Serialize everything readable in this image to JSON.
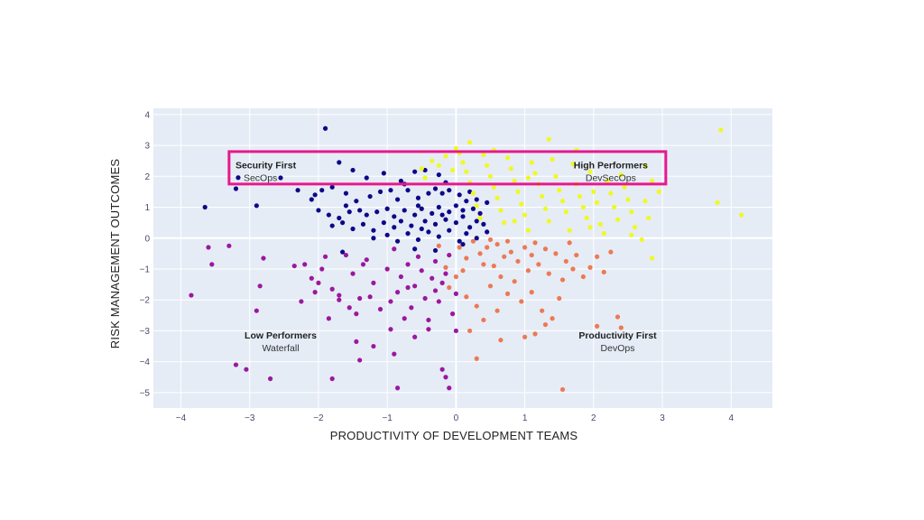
{
  "chart_data": {
    "type": "scatter",
    "title": "",
    "xlabel": "PRODUCTIVITY OF DEVELOPMENT TEAMS",
    "ylabel": "RISK MANAGEMENT OUTCOMES",
    "xlim": [
      -4.4,
      4.6
    ],
    "ylim": [
      -5.5,
      4.2
    ],
    "xticks": [
      -4,
      -3,
      -2,
      -1,
      0,
      1,
      2,
      3,
      4
    ],
    "yticks": [
      -5,
      -4,
      -3,
      -2,
      -1,
      0,
      1,
      2,
      3,
      4
    ],
    "xtick_labels": [
      "−4",
      "−3",
      "−2",
      "−1",
      "0",
      "1",
      "2",
      "3",
      "4"
    ],
    "ytick_labels": [
      "−5",
      "−4",
      "−3",
      "−2",
      "−1",
      "0",
      "1",
      "2",
      "3",
      "4"
    ],
    "grid": true,
    "plot_background": "#e5ecf6",
    "highlight_box": {
      "x": [
        -3.3,
        3.05
      ],
      "y": [
        1.75,
        2.8
      ],
      "color": "#e8188c"
    },
    "annotations": [
      {
        "title": "Security First",
        "subtitle": "SecOps",
        "x": -2.8,
        "y": 2.25,
        "marker": true
      },
      {
        "title": "High Performers",
        "subtitle": "DevSecOps",
        "x": 2.25,
        "y": 2.25,
        "marker": false
      },
      {
        "title": "Low Performers",
        "subtitle": "Waterfall",
        "x": -2.55,
        "y": -3.25,
        "marker": false
      },
      {
        "title": "Productivity First",
        "subtitle": "DevOps",
        "x": 2.35,
        "y": -3.25,
        "marker": false
      }
    ],
    "series": [
      {
        "color": "#0d0887",
        "points": [
          [
            -1.9,
            3.55
          ],
          [
            -1.7,
            2.45
          ],
          [
            -1.5,
            2.2
          ],
          [
            -1.3,
            1.95
          ],
          [
            -1.05,
            2.1
          ],
          [
            -0.8,
            1.85
          ],
          [
            -0.6,
            2.15
          ],
          [
            -0.45,
            2.2
          ],
          [
            -0.25,
            2.05
          ],
          [
            -2.55,
            1.95
          ],
          [
            -3.2,
            1.6
          ],
          [
            -3.65,
            1.0
          ],
          [
            -2.9,
            1.05
          ],
          [
            -2.3,
            1.55
          ],
          [
            -2.1,
            1.25
          ],
          [
            -1.95,
            1.55
          ],
          [
            -1.8,
            1.65
          ],
          [
            -1.6,
            1.45
          ],
          [
            -1.45,
            1.2
          ],
          [
            -1.25,
            1.35
          ],
          [
            -1.1,
            1.5
          ],
          [
            -0.95,
            1.55
          ],
          [
            -0.85,
            1.25
          ],
          [
            -0.7,
            1.55
          ],
          [
            -0.55,
            1.3
          ],
          [
            -0.4,
            1.45
          ],
          [
            -0.3,
            1.6
          ],
          [
            -0.2,
            1.45
          ],
          [
            -0.1,
            1.55
          ],
          [
            0.05,
            1.4
          ],
          [
            0.2,
            1.5
          ],
          [
            -2.0,
            0.9
          ],
          [
            -1.85,
            0.75
          ],
          [
            -1.7,
            0.65
          ],
          [
            -1.55,
            0.85
          ],
          [
            -1.4,
            0.9
          ],
          [
            -1.3,
            0.75
          ],
          [
            -1.15,
            0.85
          ],
          [
            -1.0,
            0.95
          ],
          [
            -0.9,
            0.7
          ],
          [
            -0.75,
            0.9
          ],
          [
            -0.6,
            0.75
          ],
          [
            -0.5,
            0.95
          ],
          [
            -0.35,
            0.8
          ],
          [
            -0.25,
            1.0
          ],
          [
            -0.1,
            0.85
          ],
          [
            0.0,
            1.05
          ],
          [
            0.1,
            0.9
          ],
          [
            0.25,
            0.95
          ],
          [
            0.35,
            0.8
          ],
          [
            0.45,
            1.15
          ],
          [
            -1.8,
            0.4
          ],
          [
            -1.65,
            0.5
          ],
          [
            -1.5,
            0.3
          ],
          [
            -1.35,
            0.45
          ],
          [
            -1.2,
            0.25
          ],
          [
            -1.05,
            0.5
          ],
          [
            -0.9,
            0.35
          ],
          [
            -0.8,
            0.55
          ],
          [
            -0.65,
            0.4
          ],
          [
            -0.5,
            0.3
          ],
          [
            -0.45,
            0.55
          ],
          [
            -0.3,
            0.45
          ],
          [
            -0.15,
            0.6
          ],
          [
            0.0,
            0.5
          ],
          [
            0.1,
            0.7
          ],
          [
            0.2,
            0.35
          ],
          [
            0.3,
            0.55
          ],
          [
            0.4,
            0.45
          ],
          [
            -1.2,
            0.0
          ],
          [
            -1.0,
            0.1
          ],
          [
            -0.85,
            -0.1
          ],
          [
            -0.7,
            0.15
          ],
          [
            -0.55,
            -0.05
          ],
          [
            -0.4,
            0.2
          ],
          [
            -0.25,
            0.05
          ],
          [
            -0.1,
            0.25
          ],
          [
            0.05,
            -0.1
          ],
          [
            0.15,
            0.15
          ],
          [
            0.3,
            0.0
          ],
          [
            0.45,
            0.2
          ],
          [
            -1.65,
            -0.45
          ],
          [
            -0.6,
            -0.35
          ],
          [
            -0.3,
            -0.4
          ],
          [
            0.1,
            -0.2
          ],
          [
            -0.75,
            1.75
          ],
          [
            -0.15,
            1.8
          ],
          [
            0.3,
            1.25
          ],
          [
            -2.05,
            1.4
          ],
          [
            -1.6,
            1.05
          ],
          [
            -0.55,
            1.05
          ],
          [
            -0.2,
            0.75
          ],
          [
            0.15,
            1.2
          ]
        ]
      },
      {
        "color": "#9c179e",
        "points": [
          [
            -3.85,
            -1.85
          ],
          [
            -3.55,
            -0.85
          ],
          [
            -3.6,
            -0.3
          ],
          [
            -3.3,
            -0.25
          ],
          [
            -2.8,
            -0.65
          ],
          [
            -2.85,
            -1.55
          ],
          [
            -2.9,
            -2.35
          ],
          [
            -3.2,
            -4.1
          ],
          [
            -3.05,
            -4.25
          ],
          [
            -2.7,
            -4.55
          ],
          [
            -2.35,
            -0.9
          ],
          [
            -2.25,
            -2.05
          ],
          [
            -2.2,
            -0.85
          ],
          [
            -2.1,
            -1.3
          ],
          [
            -2.0,
            -1.45
          ],
          [
            -1.95,
            -1.0
          ],
          [
            -1.9,
            -0.6
          ],
          [
            -1.85,
            -2.6
          ],
          [
            -1.8,
            -1.65
          ],
          [
            -1.7,
            -2.0
          ],
          [
            -1.7,
            -1.85
          ],
          [
            -1.6,
            -0.55
          ],
          [
            -1.55,
            -2.25
          ],
          [
            -1.5,
            -1.15
          ],
          [
            -1.45,
            -2.45
          ],
          [
            -1.4,
            -1.95
          ],
          [
            -1.35,
            -0.85
          ],
          [
            -1.3,
            -0.7
          ],
          [
            -1.2,
            -1.45
          ],
          [
            -1.1,
            -2.3
          ],
          [
            -1.0,
            -1.0
          ],
          [
            -0.95,
            -2.05
          ],
          [
            -0.9,
            -0.35
          ],
          [
            -0.85,
            -1.75
          ],
          [
            -0.8,
            -1.25
          ],
          [
            -0.75,
            -2.6
          ],
          [
            -0.7,
            -0.85
          ],
          [
            -0.65,
            -2.25
          ],
          [
            -0.6,
            -1.55
          ],
          [
            -0.55,
            -0.6
          ],
          [
            -0.5,
            -1.05
          ],
          [
            -0.45,
            -1.95
          ],
          [
            -0.4,
            -2.65
          ],
          [
            -0.35,
            -1.3
          ],
          [
            -0.3,
            -0.75
          ],
          [
            -0.25,
            -2.05
          ],
          [
            -0.2,
            -1.45
          ],
          [
            -0.15,
            -1.15
          ],
          [
            -0.1,
            -0.55
          ],
          [
            -0.05,
            -2.45
          ],
          [
            0.0,
            -1.8
          ],
          [
            -1.8,
            -4.55
          ],
          [
            -1.45,
            -3.35
          ],
          [
            -1.4,
            -3.95
          ],
          [
            -1.2,
            -3.5
          ],
          [
            -0.95,
            -2.95
          ],
          [
            -0.9,
            -3.75
          ],
          [
            -0.85,
            -4.85
          ],
          [
            -0.6,
            -3.2
          ],
          [
            -0.4,
            -2.95
          ],
          [
            -0.2,
            -4.25
          ],
          [
            -0.15,
            -4.5
          ],
          [
            -0.1,
            -4.85
          ],
          [
            0.0,
            -3.0
          ],
          [
            -2.05,
            -1.75
          ],
          [
            -1.25,
            -1.9
          ],
          [
            -0.7,
            -1.6
          ],
          [
            -0.3,
            -1.7
          ]
        ]
      },
      {
        "color": "#ed7953",
        "points": [
          [
            0.05,
            -0.3
          ],
          [
            0.15,
            -0.65
          ],
          [
            0.25,
            -0.1
          ],
          [
            0.35,
            -0.5
          ],
          [
            0.4,
            -0.85
          ],
          [
            0.45,
            -0.3
          ],
          [
            0.55,
            -0.9
          ],
          [
            0.6,
            -0.2
          ],
          [
            0.65,
            -1.25
          ],
          [
            0.7,
            -0.6
          ],
          [
            0.75,
            -0.1
          ],
          [
            0.8,
            -0.45
          ],
          [
            0.9,
            -0.75
          ],
          [
            1.0,
            -0.3
          ],
          [
            1.05,
            -1.05
          ],
          [
            1.1,
            -0.55
          ],
          [
            1.15,
            -0.15
          ],
          [
            1.2,
            -0.85
          ],
          [
            1.3,
            -0.35
          ],
          [
            1.35,
            -1.15
          ],
          [
            1.45,
            -0.5
          ],
          [
            1.55,
            -1.35
          ],
          [
            1.6,
            -0.75
          ],
          [
            1.7,
            -1.0
          ],
          [
            1.75,
            -0.55
          ],
          [
            1.85,
            -1.25
          ],
          [
            1.95,
            -0.95
          ],
          [
            2.05,
            -0.6
          ],
          [
            2.15,
            -1.1
          ],
          [
            2.25,
            -0.45
          ],
          [
            -0.1,
            -1.6
          ],
          [
            0.0,
            -1.25
          ],
          [
            0.15,
            -1.9
          ],
          [
            0.3,
            -2.2
          ],
          [
            0.5,
            -1.55
          ],
          [
            0.6,
            -2.35
          ],
          [
            0.75,
            -1.8
          ],
          [
            0.95,
            -2.05
          ],
          [
            1.1,
            -1.75
          ],
          [
            1.25,
            -2.35
          ],
          [
            1.4,
            -2.6
          ],
          [
            1.5,
            -1.95
          ],
          [
            0.2,
            -3.0
          ],
          [
            0.3,
            -3.9
          ],
          [
            0.4,
            -2.65
          ],
          [
            0.65,
            -3.3
          ],
          [
            1.0,
            -3.2
          ],
          [
            1.15,
            -3.1
          ],
          [
            1.3,
            -2.8
          ],
          [
            1.55,
            -4.9
          ],
          [
            2.05,
            -2.85
          ],
          [
            2.35,
            -2.55
          ],
          [
            2.4,
            -2.9
          ],
          [
            -0.25,
            -0.25
          ],
          [
            -0.15,
            -0.95
          ],
          [
            0.1,
            -1.05
          ],
          [
            0.5,
            -0.05
          ],
          [
            0.85,
            -1.4
          ],
          [
            1.65,
            -0.15
          ]
        ]
      },
      {
        "color": "#f0f921",
        "points": [
          [
            3.85,
            3.5
          ],
          [
            3.8,
            1.15
          ],
          [
            4.15,
            0.75
          ],
          [
            2.75,
            2.35
          ],
          [
            2.85,
            1.85
          ],
          [
            2.95,
            1.5
          ],
          [
            2.8,
            0.65
          ],
          [
            2.85,
            -0.65
          ],
          [
            2.7,
            -0.05
          ],
          [
            2.6,
            0.35
          ],
          [
            2.55,
            0.85
          ],
          [
            2.5,
            1.25
          ],
          [
            2.45,
            1.65
          ],
          [
            2.4,
            2.05
          ],
          [
            2.35,
            0.6
          ],
          [
            2.3,
            1.0
          ],
          [
            2.25,
            1.45
          ],
          [
            2.2,
            1.85
          ],
          [
            2.15,
            0.15
          ],
          [
            2.1,
            0.45
          ],
          [
            2.05,
            1.15
          ],
          [
            2.0,
            1.5
          ],
          [
            1.95,
            2.15
          ],
          [
            1.9,
            0.65
          ],
          [
            1.85,
            1.0
          ],
          [
            1.8,
            1.35
          ],
          [
            1.75,
            1.75
          ],
          [
            1.7,
            2.4
          ],
          [
            1.65,
            0.25
          ],
          [
            1.6,
            0.85
          ],
          [
            1.55,
            1.2
          ],
          [
            1.5,
            1.55
          ],
          [
            1.45,
            2.0
          ],
          [
            1.4,
            2.55
          ],
          [
            1.35,
            0.55
          ],
          [
            1.3,
            0.95
          ],
          [
            1.25,
            1.35
          ],
          [
            1.2,
            1.75
          ],
          [
            1.15,
            2.1
          ],
          [
            1.1,
            2.45
          ],
          [
            1.05,
            0.25
          ],
          [
            1.0,
            0.75
          ],
          [
            0.95,
            1.1
          ],
          [
            0.9,
            1.5
          ],
          [
            0.85,
            1.85
          ],
          [
            0.8,
            2.25
          ],
          [
            0.75,
            2.6
          ],
          [
            0.7,
            0.5
          ],
          [
            0.65,
            0.9
          ],
          [
            0.6,
            1.3
          ],
          [
            0.55,
            1.65
          ],
          [
            0.5,
            2.0
          ],
          [
            0.45,
            2.35
          ],
          [
            0.4,
            2.7
          ],
          [
            0.35,
            0.65
          ],
          [
            0.3,
            1.05
          ],
          [
            0.25,
            1.45
          ],
          [
            0.2,
            1.8
          ],
          [
            0.15,
            2.15
          ],
          [
            0.1,
            2.45
          ],
          [
            0.05,
            2.75
          ],
          [
            0.0,
            2.9
          ],
          [
            -0.05,
            2.2
          ],
          [
            -0.15,
            2.65
          ],
          [
            -0.25,
            2.35
          ],
          [
            -0.35,
            2.5
          ],
          [
            -0.45,
            1.95
          ],
          [
            -0.5,
            2.25
          ],
          [
            1.35,
            3.2
          ],
          [
            0.2,
            3.1
          ],
          [
            0.55,
            2.85
          ],
          [
            1.75,
            2.85
          ],
          [
            2.55,
            0.1
          ],
          [
            2.75,
            1.2
          ],
          [
            1.95,
            0.35
          ],
          [
            1.05,
            1.95
          ],
          [
            0.85,
            0.55
          ]
        ]
      }
    ]
  }
}
